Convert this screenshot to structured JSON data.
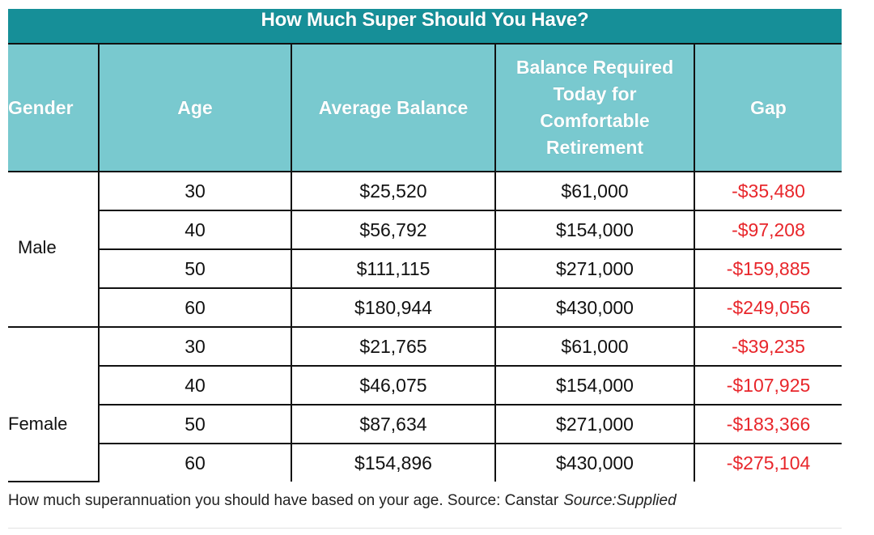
{
  "table": {
    "title": "How Much Super Should You Have?",
    "headers": {
      "gender": "Gender",
      "age": "Age",
      "average_balance": "Average Balance",
      "balance_required": "Balance Required Today for Comfortable Retirement",
      "gap": "Gap"
    },
    "groups": [
      {
        "gender": "Male",
        "rows": [
          {
            "age": "30",
            "average_balance": "$25,520",
            "balance_required": "$61,000",
            "gap": "-$35,480"
          },
          {
            "age": "40",
            "average_balance": "$56,792",
            "balance_required": "$154,000",
            "gap": "-$97,208"
          },
          {
            "age": "50",
            "average_balance": "$111,115",
            "balance_required": "$271,000",
            "gap": "-$159,885"
          },
          {
            "age": "60",
            "average_balance": "$180,944",
            "balance_required": "$430,000",
            "gap": "-$249,056"
          }
        ]
      },
      {
        "gender": "Female",
        "rows": [
          {
            "age": "30",
            "average_balance": "$21,765",
            "balance_required": "$61,000",
            "gap": "-$39,235"
          },
          {
            "age": "40",
            "average_balance": "$46,075",
            "balance_required": "$154,000",
            "gap": "-$107,925"
          },
          {
            "age": "50",
            "average_balance": "$87,634",
            "balance_required": "$271,000",
            "gap": "-$183,366"
          },
          {
            "age": "60",
            "average_balance": "$154,896",
            "balance_required": "$430,000",
            "gap": "-$275,104"
          }
        ]
      }
    ]
  },
  "caption": {
    "text": "How much superannuation you should have based on your age. Source: Canstar",
    "source": "Source:Supplied"
  },
  "colors": {
    "title_bar": "#168f98",
    "header_bg": "#79c9cf",
    "gap_text": "#e8262b"
  }
}
